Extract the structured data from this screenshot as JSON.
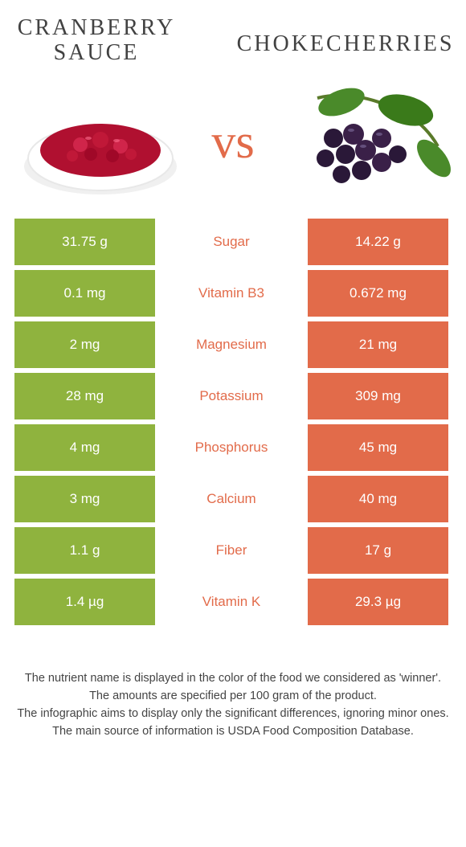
{
  "header": {
    "left_title": "CRANBERRY SAUCE",
    "right_title": "CHOKECHERRIES",
    "vs": "vs"
  },
  "colors": {
    "green": "#8fb33e",
    "orange": "#e26b4a",
    "text": "#424242"
  },
  "rows": [
    {
      "left": "31.75 g",
      "label": "Sugar",
      "right": "14.22 g",
      "winner": "orange"
    },
    {
      "left": "0.1 mg",
      "label": "Vitamin B3",
      "right": "0.672 mg",
      "winner": "orange"
    },
    {
      "left": "2 mg",
      "label": "Magnesium",
      "right": "21 mg",
      "winner": "orange"
    },
    {
      "left": "28 mg",
      "label": "Potassium",
      "right": "309 mg",
      "winner": "orange"
    },
    {
      "left": "4 mg",
      "label": "Phosphorus",
      "right": "45 mg",
      "winner": "orange"
    },
    {
      "left": "3 mg",
      "label": "Calcium",
      "right": "40 mg",
      "winner": "orange"
    },
    {
      "left": "1.1 g",
      "label": "Fiber",
      "right": "17 g",
      "winner": "orange"
    },
    {
      "left": "1.4 µg",
      "label": "Vitamin K",
      "right": "29.3 µg",
      "winner": "orange"
    }
  ],
  "footer": {
    "line1": "The nutrient name is displayed in the color of the food we considered as 'winner'.",
    "line2": "The amounts are specified per 100 gram of the product.",
    "line3": "The infographic aims to display only the significant differences, ignoring minor ones.",
    "line4": "The main source of information is USDA Food Composition Database."
  }
}
